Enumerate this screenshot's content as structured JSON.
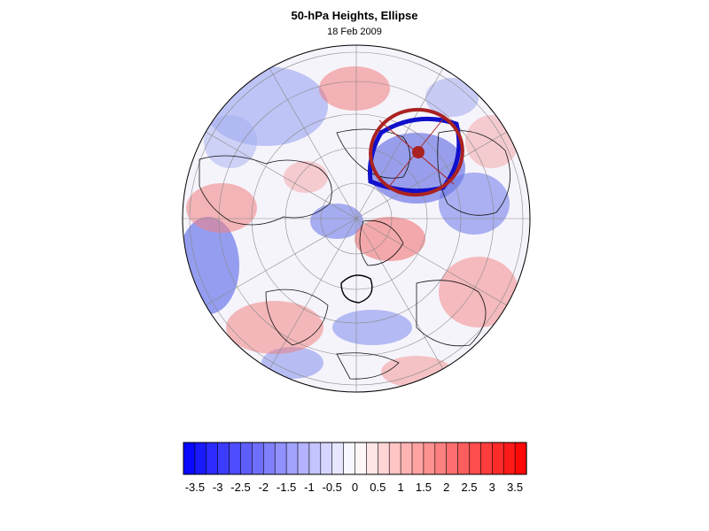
{
  "title": "50-hPa Heights, Ellipse",
  "subtitle": "18 Feb 2009",
  "colorbar": {
    "min": -3.75,
    "max": 3.75,
    "step": 0.25,
    "low_color": "#0000ff",
    "mid_color": "#ffffff",
    "high_color": "#ff0000",
    "ticks": [
      "-3.5",
      "-3",
      "-2.5",
      "-2",
      "-1.5",
      "-1",
      "-0.5",
      "0",
      "0.5",
      "1",
      "1.5",
      "2",
      "2.5",
      "3",
      "3.5"
    ]
  },
  "map": {
    "projection": "orthographic polar",
    "ocean_color": "#f4f4ff",
    "ellipse_colors": {
      "outer": "#1010cc",
      "inner": "#aa2222",
      "small": "#000000"
    }
  }
}
